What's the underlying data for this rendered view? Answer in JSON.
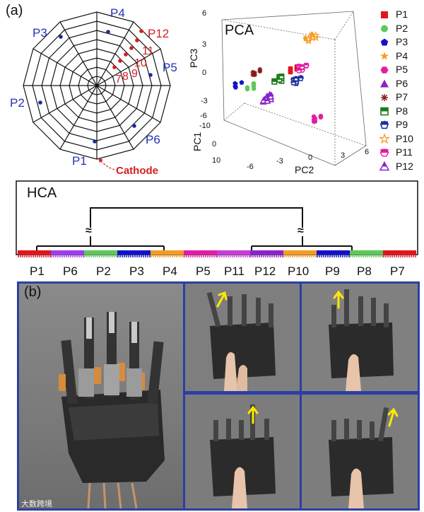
{
  "panel_a": {
    "tag": "(a)",
    "spider": {
      "positions": [
        "P1",
        "P2",
        "P3",
        "P4",
        "P5",
        "P6"
      ],
      "electrodes": [
        "7",
        "8",
        "9",
        "10",
        "11",
        "P12"
      ],
      "cathode": "Cathode"
    },
    "pca": {
      "title": "PCA",
      "axes": {
        "pc1": "PC1",
        "pc2": "PC2",
        "pc3": "PC3"
      },
      "pc3_ticks": [
        "6",
        "3",
        "0",
        "-3",
        "-6"
      ],
      "pc1_ticks": [
        "-10",
        "0",
        "10"
      ],
      "pc2_ticks": [
        "-6",
        "-3",
        "0",
        "3",
        "6"
      ],
      "legend": [
        "P1",
        "P2",
        "P3",
        "P4",
        "P5",
        "P6",
        "P7",
        "P8",
        "P9",
        "P10",
        "P11",
        "P12"
      ]
    }
  },
  "hca": {
    "title": "HCA",
    "order": [
      "P1",
      "P6",
      "P2",
      "P3",
      "P4",
      "P5",
      "P11",
      "P12",
      "P10",
      "P9",
      "P8",
      "P7"
    ],
    "break_symbol": "≈"
  },
  "panel_b": {
    "tag": "(b)"
  },
  "watermark": "大数跨境",
  "colors": {
    "red": "#e2141c",
    "green": "#5ec85a",
    "blue": "#1212c8",
    "orange": "#f59b22",
    "magenta": "#e41ca4",
    "purple": "#8a23c8",
    "navy": "#1e2fa0",
    "frame": "#2b3fa6",
    "yellow": "#ffe800"
  }
}
